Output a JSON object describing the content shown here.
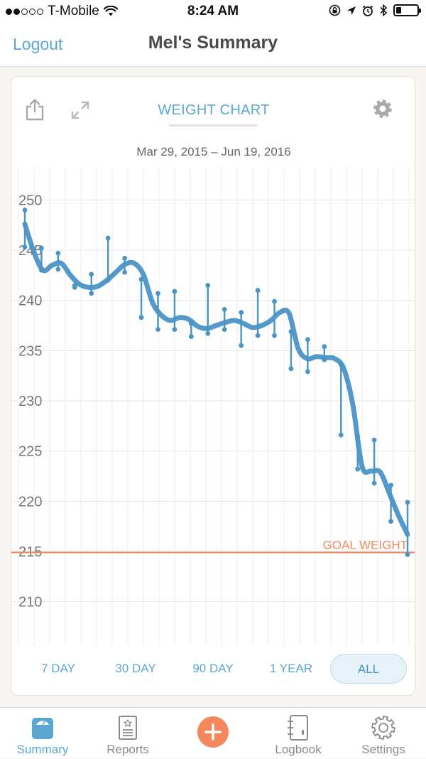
{
  "status_bar": {
    "carrier": "T-Mobile",
    "time": "8:24 AM",
    "signal_bars_on": 2,
    "signal_bars_total": 5,
    "battery_level": 0.25
  },
  "nav": {
    "logout_label": "Logout",
    "title": "Mel's Summary"
  },
  "card": {
    "chart_title": "WEIGHT CHART",
    "date_range": "Mar 29, 2015 – Jun 19, 2016",
    "goal_label": "GOAL WEIGHT"
  },
  "colors": {
    "accent": "#5aa7d2",
    "line": "#4a94c6",
    "goal": "#f0895f",
    "add_button": "#f5875c"
  },
  "chart_data": {
    "type": "line",
    "title": "WEIGHT CHART",
    "xlabel": "",
    "ylabel": "",
    "x_range": [
      "Mar 29, 2015",
      "Jun 19, 2016"
    ],
    "ylim": [
      207.5,
      252.5
    ],
    "y_ticks": [
      250,
      245,
      240,
      235,
      230,
      225,
      220,
      215,
      210
    ],
    "grid": true,
    "goal_weight": 214.9,
    "trend_line": [
      247.6,
      244.8,
      243.0,
      243.5,
      243.7,
      242.5,
      241.6,
      241.3,
      241.4,
      242.0,
      242.8,
      243.6,
      243.7,
      242.6,
      239.8,
      238.5,
      238.0,
      238.3,
      238.1,
      237.4,
      237.2,
      237.5,
      237.8,
      238.0,
      237.7,
      237.3,
      237.5,
      238.0,
      238.8,
      238.7,
      235.2,
      234.2,
      234.4,
      234.3,
      234.2,
      233.2,
      229.6,
      223.5,
      223.0,
      222.9,
      220.8,
      218.6,
      216.7
    ],
    "range_bars": [
      {
        "low": 245.3,
        "high": 249.0
      },
      {
        "low": 243.0,
        "high": 245.2
      },
      {
        "low": 243.1,
        "high": 244.7
      },
      {
        "low": 241.3,
        "high": 241.5
      },
      {
        "low": 240.7,
        "high": 242.6
      },
      {
        "low": 242.0,
        "high": 246.2
      },
      {
        "low": 242.8,
        "high": 244.2
      },
      {
        "low": 238.3,
        "high": 242.1
      },
      {
        "low": 237.1,
        "high": 240.7
      },
      {
        "low": 237.1,
        "high": 240.9
      },
      {
        "low": 236.4,
        "high": 237.7
      },
      {
        "low": 236.7,
        "high": 241.5
      },
      {
        "low": 237.1,
        "high": 239.1
      },
      {
        "low": 235.5,
        "high": 238.8
      },
      {
        "low": 236.5,
        "high": 241.0
      },
      {
        "low": 236.5,
        "high": 239.9
      },
      {
        "low": 233.2,
        "high": 236.9
      },
      {
        "low": 232.9,
        "high": 236.1
      },
      {
        "low": 234.1,
        "high": 235.4
      },
      {
        "low": 226.6,
        "high": 233.6
      },
      {
        "low": 223.2,
        "high": 226.5
      },
      {
        "low": 221.8,
        "high": 226.1
      },
      {
        "low": 218.0,
        "high": 221.6
      },
      {
        "low": 214.7,
        "high": 219.9
      }
    ],
    "range_tabs": [
      "7 DAY",
      "30 DAY",
      "90 DAY",
      "1 YEAR",
      "ALL"
    ],
    "active_range": "ALL"
  },
  "tabs": [
    {
      "label": "Summary",
      "icon": "scale-icon",
      "active": true
    },
    {
      "label": "Reports",
      "icon": "report-icon",
      "active": false
    },
    {
      "label": "",
      "icon": "plus-icon",
      "active": false
    },
    {
      "label": "Logbook",
      "icon": "logbook-icon",
      "active": false
    },
    {
      "label": "Settings",
      "icon": "gear-icon",
      "active": false
    }
  ]
}
